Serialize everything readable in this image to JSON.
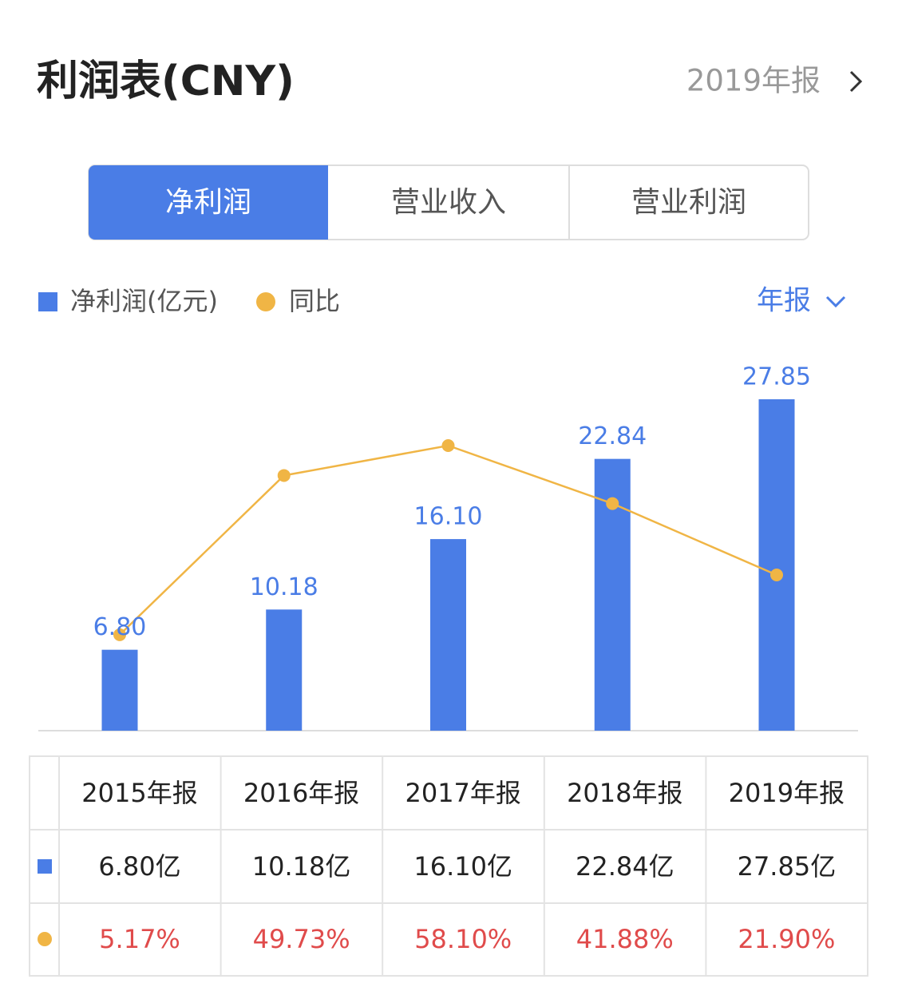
{
  "header": {
    "title": "利润表(CNY)",
    "report": "2019年报"
  },
  "tabs": [
    "净利润",
    "营业收入",
    "营业利润"
  ],
  "period_selector": "年报",
  "chart_data": {
    "type": "bar_line",
    "categories": [
      "2015年报",
      "2016年报",
      "2017年报",
      "2018年报",
      "2019年报"
    ],
    "series": [
      {
        "name": "净利润(亿元)",
        "color": "#4a7de6",
        "type": "bar",
        "values": [
          6.8,
          10.18,
          16.1,
          22.84,
          27.85
        ],
        "value_labels": [
          "6.80",
          "10.18",
          "16.10",
          "22.84",
          "27.85"
        ]
      },
      {
        "name": "同比",
        "color": "#f0b545",
        "type": "line",
        "values": [
          5.17,
          49.73,
          58.1,
          41.88,
          21.9
        ]
      }
    ]
  },
  "table": {
    "rows": [
      [
        "6.80亿",
        "10.18亿",
        "16.10亿",
        "22.84亿",
        "27.85亿"
      ],
      [
        "5.17%",
        "49.73%",
        "58.10%",
        "41.88%",
        "21.90%"
      ]
    ]
  }
}
